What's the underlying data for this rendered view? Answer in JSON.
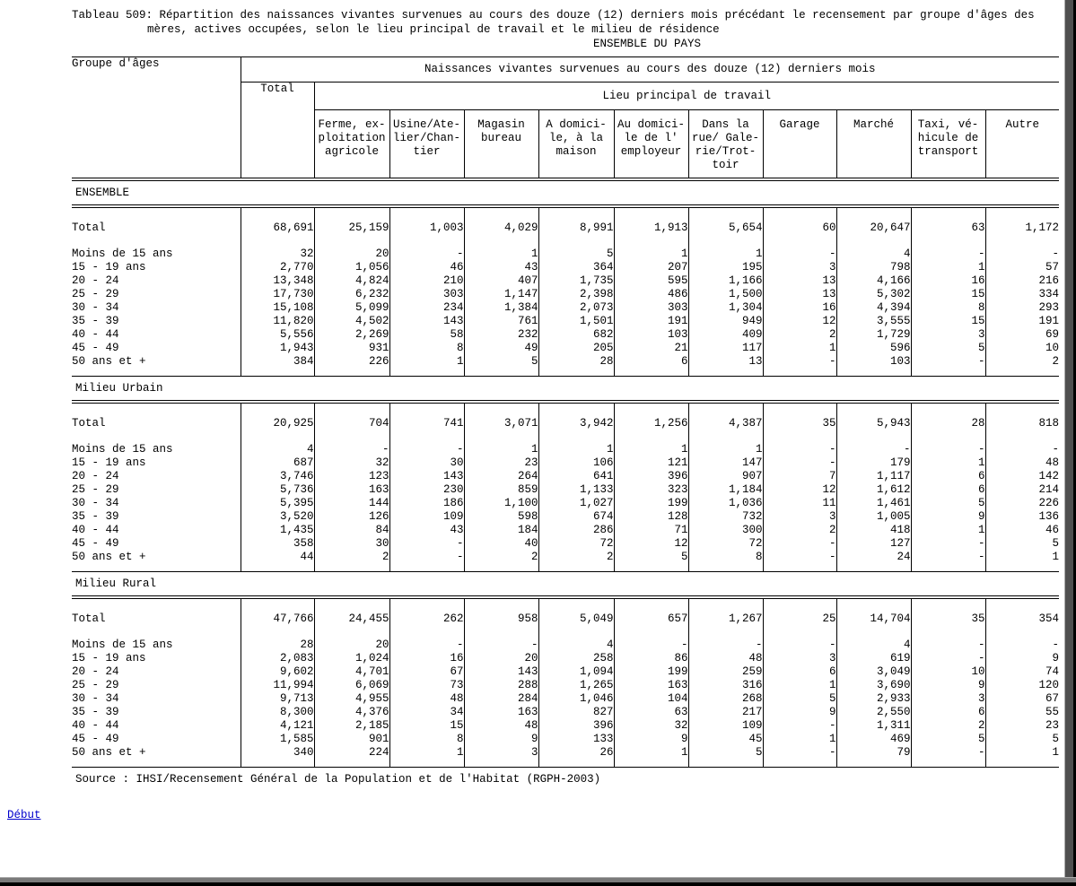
{
  "page": {
    "title_line1": "Tableau 509: Répartition des naissances vivantes survenues au cours des douze (12) derniers mois précédant le recensement par groupe d'âges des",
    "title_line2": "mères, actives occupées, selon le lieu principal de travail et le milieu de résidence",
    "title_line3": "ENSEMBLE DU PAYS",
    "source": "Source : IHSI/Recensement Général de la Population et de l'Habitat (RGPH-2003)",
    "footer_link": "Début",
    "link_color": "#0000cc",
    "text_color": "#000000",
    "background_color": "#ffffff"
  },
  "table": {
    "row_header": "Groupe d'âges",
    "col_group_header": "Naissances vivantes survenues au cours des douze (12) derniers mois",
    "total_header": "Total",
    "workplace_header": "Lieu principal de travail",
    "workplace_columns": [
      "Ferme, ex-\nploitation\nagricole",
      "Usine/Ate-\nlier/Chan-\ntier",
      "Magasin\nbureau",
      "A domici-\nle, à la\nmaison",
      "Au domici-\nle de l'\nemployeur",
      "Dans la\nrue/ Gale-\nrie/Trot-\ntoir",
      "Garage",
      "Marché",
      "Taxi, vé-\nhicule de\ntransport",
      "Autre"
    ],
    "sections": [
      {
        "label": "ENSEMBLE",
        "rows": [
          {
            "label": "Total",
            "values": [
              "68,691",
              "25,159",
              "1,003",
              "4,029",
              "8,991",
              "1,913",
              "5,654",
              "60",
              "20,647",
              "63",
              "1,172"
            ]
          },
          {
            "label": "Moins de 15 ans",
            "values": [
              "32",
              "20",
              "-",
              "1",
              "5",
              "1",
              "1",
              "-",
              "4",
              "-",
              "-"
            ]
          },
          {
            "label": "15 - 19 ans",
            "values": [
              "2,770",
              "1,056",
              "46",
              "43",
              "364",
              "207",
              "195",
              "3",
              "798",
              "1",
              "57"
            ]
          },
          {
            "label": "20 - 24",
            "values": [
              "13,348",
              "4,824",
              "210",
              "407",
              "1,735",
              "595",
              "1,166",
              "13",
              "4,166",
              "16",
              "216"
            ]
          },
          {
            "label": "25 - 29",
            "values": [
              "17,730",
              "6,232",
              "303",
              "1,147",
              "2,398",
              "486",
              "1,500",
              "13",
              "5,302",
              "15",
              "334"
            ]
          },
          {
            "label": "30 - 34",
            "values": [
              "15,108",
              "5,099",
              "234",
              "1,384",
              "2,073",
              "303",
              "1,304",
              "16",
              "4,394",
              "8",
              "293"
            ]
          },
          {
            "label": "35 - 39",
            "values": [
              "11,820",
              "4,502",
              "143",
              "761",
              "1,501",
              "191",
              "949",
              "12",
              "3,555",
              "15",
              "191"
            ]
          },
          {
            "label": "40 - 44",
            "values": [
              "5,556",
              "2,269",
              "58",
              "232",
              "682",
              "103",
              "409",
              "2",
              "1,729",
              "3",
              "69"
            ]
          },
          {
            "label": "45 - 49",
            "values": [
              "1,943",
              "931",
              "8",
              "49",
              "205",
              "21",
              "117",
              "1",
              "596",
              "5",
              "10"
            ]
          },
          {
            "label": "50 ans et +",
            "values": [
              "384",
              "226",
              "1",
              "5",
              "28",
              "6",
              "13",
              "-",
              "103",
              "-",
              "2"
            ]
          }
        ]
      },
      {
        "label": "Milieu Urbain",
        "rows": [
          {
            "label": "Total",
            "values": [
              "20,925",
              "704",
              "741",
              "3,071",
              "3,942",
              "1,256",
              "4,387",
              "35",
              "5,943",
              "28",
              "818"
            ]
          },
          {
            "label": "Moins de 15 ans",
            "values": [
              "4",
              "-",
              "-",
              "1",
              "1",
              "1",
              "1",
              "-",
              "-",
              "-",
              "-"
            ]
          },
          {
            "label": "15 - 19 ans",
            "values": [
              "687",
              "32",
              "30",
              "23",
              "106",
              "121",
              "147",
              "-",
              "179",
              "1",
              "48"
            ]
          },
          {
            "label": "20 - 24",
            "values": [
              "3,746",
              "123",
              "143",
              "264",
              "641",
              "396",
              "907",
              "7",
              "1,117",
              "6",
              "142"
            ]
          },
          {
            "label": "25 - 29",
            "values": [
              "5,736",
              "163",
              "230",
              "859",
              "1,133",
              "323",
              "1,184",
              "12",
              "1,612",
              "6",
              "214"
            ]
          },
          {
            "label": "30 - 34",
            "values": [
              "5,395",
              "144",
              "186",
              "1,100",
              "1,027",
              "199",
              "1,036",
              "11",
              "1,461",
              "5",
              "226"
            ]
          },
          {
            "label": "35 - 39",
            "values": [
              "3,520",
              "126",
              "109",
              "598",
              "674",
              "128",
              "732",
              "3",
              "1,005",
              "9",
              "136"
            ]
          },
          {
            "label": "40 - 44",
            "values": [
              "1,435",
              "84",
              "43",
              "184",
              "286",
              "71",
              "300",
              "2",
              "418",
              "1",
              "46"
            ]
          },
          {
            "label": "45 - 49",
            "values": [
              "358",
              "30",
              "-",
              "40",
              "72",
              "12",
              "72",
              "-",
              "127",
              "-",
              "5"
            ]
          },
          {
            "label": "50 ans et +",
            "values": [
              "44",
              "2",
              "-",
              "2",
              "2",
              "5",
              "8",
              "-",
              "24",
              "-",
              "1"
            ]
          }
        ]
      },
      {
        "label": "Milieu Rural",
        "rows": [
          {
            "label": "Total",
            "values": [
              "47,766",
              "24,455",
              "262",
              "958",
              "5,049",
              "657",
              "1,267",
              "25",
              "14,704",
              "35",
              "354"
            ]
          },
          {
            "label": "Moins de 15 ans",
            "values": [
              "28",
              "20",
              "-",
              "-",
              "4",
              "-",
              "-",
              "-",
              "4",
              "-",
              "-"
            ]
          },
          {
            "label": "15 - 19 ans",
            "values": [
              "2,083",
              "1,024",
              "16",
              "20",
              "258",
              "86",
              "48",
              "3",
              "619",
              "-",
              "9"
            ]
          },
          {
            "label": "20 - 24",
            "values": [
              "9,602",
              "4,701",
              "67",
              "143",
              "1,094",
              "199",
              "259",
              "6",
              "3,049",
              "10",
              "74"
            ]
          },
          {
            "label": "25 - 29",
            "values": [
              "11,994",
              "6,069",
              "73",
              "288",
              "1,265",
              "163",
              "316",
              "1",
              "3,690",
              "9",
              "120"
            ]
          },
          {
            "label": "30 - 34",
            "values": [
              "9,713",
              "4,955",
              "48",
              "284",
              "1,046",
              "104",
              "268",
              "5",
              "2,933",
              "3",
              "67"
            ]
          },
          {
            "label": "35 - 39",
            "values": [
              "8,300",
              "4,376",
              "34",
              "163",
              "827",
              "63",
              "217",
              "9",
              "2,550",
              "6",
              "55"
            ]
          },
          {
            "label": "40 - 44",
            "values": [
              "4,121",
              "2,185",
              "15",
              "48",
              "396",
              "32",
              "109",
              "-",
              "1,311",
              "2",
              "23"
            ]
          },
          {
            "label": "45 - 49",
            "values": [
              "1,585",
              "901",
              "8",
              "9",
              "133",
              "9",
              "45",
              "1",
              "469",
              "5",
              "5"
            ]
          },
          {
            "label": "50 ans et +",
            "values": [
              "340",
              "224",
              "1",
              "3",
              "26",
              "1",
              "5",
              "-",
              "79",
              "-",
              "1"
            ]
          }
        ]
      }
    ]
  }
}
